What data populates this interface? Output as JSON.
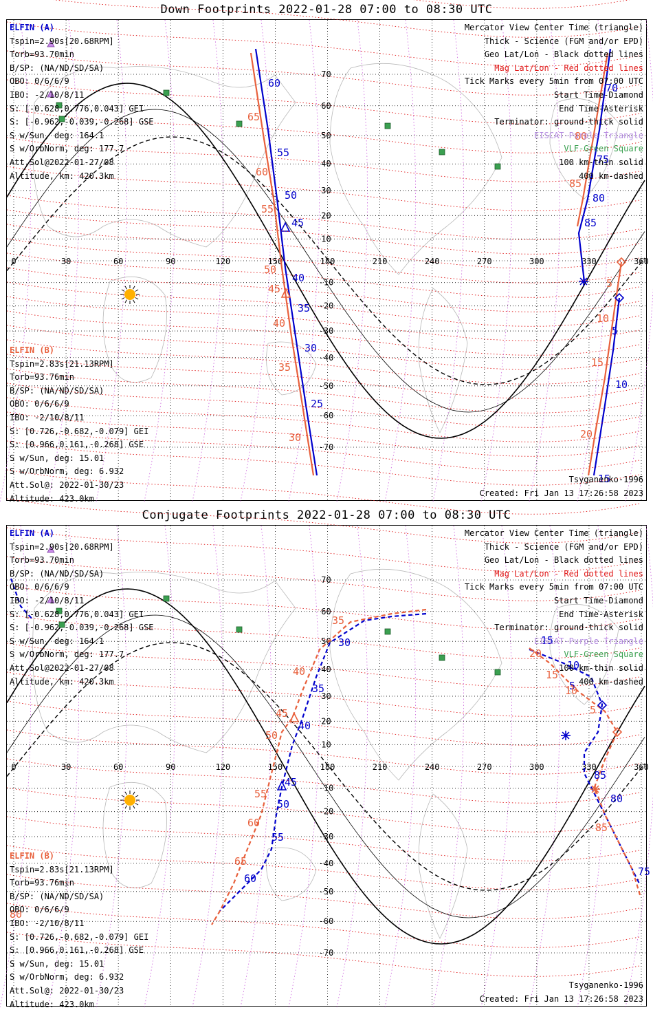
{
  "top": {
    "title": "Down Footprints 2022-01-28 07:00 to 08:30 UTC"
  },
  "bottom": {
    "title": "Conjugate Footprints 2022-01-28 07:00 to 08:30 UTC"
  },
  "elfin_a": {
    "header": "ELFIN (A)",
    "lines": [
      "Tspin=2.90s[20.68RPM]",
      "Torb=93.70min",
      "B/SP: (NA/ND/SD/SA)",
      "OBO: 0/6/6/9",
      "IBO: -2/10/8/11",
      "S: [-0.628,0.776,0.043] GEI",
      "S: [-0.962,-0.039,-0.268] GSE",
      "S w/Sun, deg: 164.1",
      "S w/OrbNorm, deg: 177.7",
      "Att.Sol@2022-01-27/08",
      "Altitude, km: 420.3km"
    ]
  },
  "elfin_b": {
    "header": "ELFIN (B)",
    "lines": [
      "Tspin=2.83s[21.13RPM]",
      "Torb=93.76min",
      "B/SP: (NA/ND/SD/SA)",
      "OBO: 0/6/6/9",
      "IBO: -2/10/8/11",
      "S: [0.726,-0.682,-0.079] GEI",
      "S: [0.966,0.161,-0.268] GSE",
      "S w/Sun, deg: 15.01",
      "S w/OrbNorm, deg: 6.932",
      "Att.Sol@: 2022-01-30/23",
      "Altitude: 423.0km"
    ]
  },
  "legend": {
    "lines": [
      {
        "text": "Mercator View Center Time (triangle)",
        "color": "#000000"
      },
      {
        "text": "Thick - Science (FGM and/or EPD)",
        "color": "#000000"
      },
      {
        "text": "Geo Lat/Lon - Black dotted lines",
        "color": "#000000"
      },
      {
        "text": "Mag Lat/Lon - Red dotted lines",
        "color": "#e01818"
      },
      {
        "text": "Tick Marks every 5min from 07:00 UTC",
        "color": "#000000"
      },
      {
        "text": "Start Time-Diamond",
        "color": "#000000"
      },
      {
        "text": "End Time-Asterisk",
        "color": "#000000"
      },
      {
        "text": "Terminator: ground-thick solid",
        "color": "#000000"
      },
      {
        "text": "EISCAT-Purple Triangle",
        "color": "#b48ce0"
      },
      {
        "text": "VLF-Green Square",
        "color": "#3aa050"
      },
      {
        "text": "100 km-thin solid",
        "color": "#000000"
      },
      {
        "text": "400 km-dashed",
        "color": "#000000"
      }
    ]
  },
  "footer": {
    "model": "Tsyganenko-1996",
    "created": "Created: Fri Jan 13 17:26:58 2023"
  },
  "map": {
    "lon_ticks": [
      "0",
      "30",
      "60",
      "90",
      "120",
      "150",
      "180",
      "210",
      "240",
      "270",
      "300",
      "330",
      "360"
    ],
    "lat_ticks": [
      "70",
      "60",
      "50",
      "40",
      "30",
      "20",
      "10",
      "-10",
      "-20",
      "-30",
      "-40",
      "-50",
      "-60",
      "-70"
    ],
    "colors": {
      "elfin_a": "#0000cc",
      "elfin_b": "#e8603c",
      "vlf": "#3aa050",
      "sun": "#ffb000",
      "geo_grid": "#000000",
      "mag_grid": "#e01818",
      "mag_lon": "#d070e0"
    }
  },
  "top_tracks": {
    "a_labels": [
      "60",
      "55",
      "50",
      "45",
      "40",
      "35",
      "30",
      "25",
      "70",
      "75",
      "80",
      "85",
      "5",
      "10",
      "15"
    ],
    "b_labels": [
      "65",
      "60",
      "55",
      "50",
      "45",
      "40",
      "35",
      "30",
      "80",
      "85",
      "5",
      "10",
      "15",
      "20"
    ]
  },
  "bottom_tracks": {
    "a_labels": [
      "30",
      "35",
      "40",
      "45",
      "50",
      "55",
      "60",
      "15",
      "10",
      "5",
      "85",
      "80",
      "75"
    ],
    "b_labels": [
      "35",
      "40",
      "45",
      "50",
      "55",
      "60",
      "65",
      "80",
      "20",
      "15",
      "10",
      "5",
      "85"
    ]
  }
}
